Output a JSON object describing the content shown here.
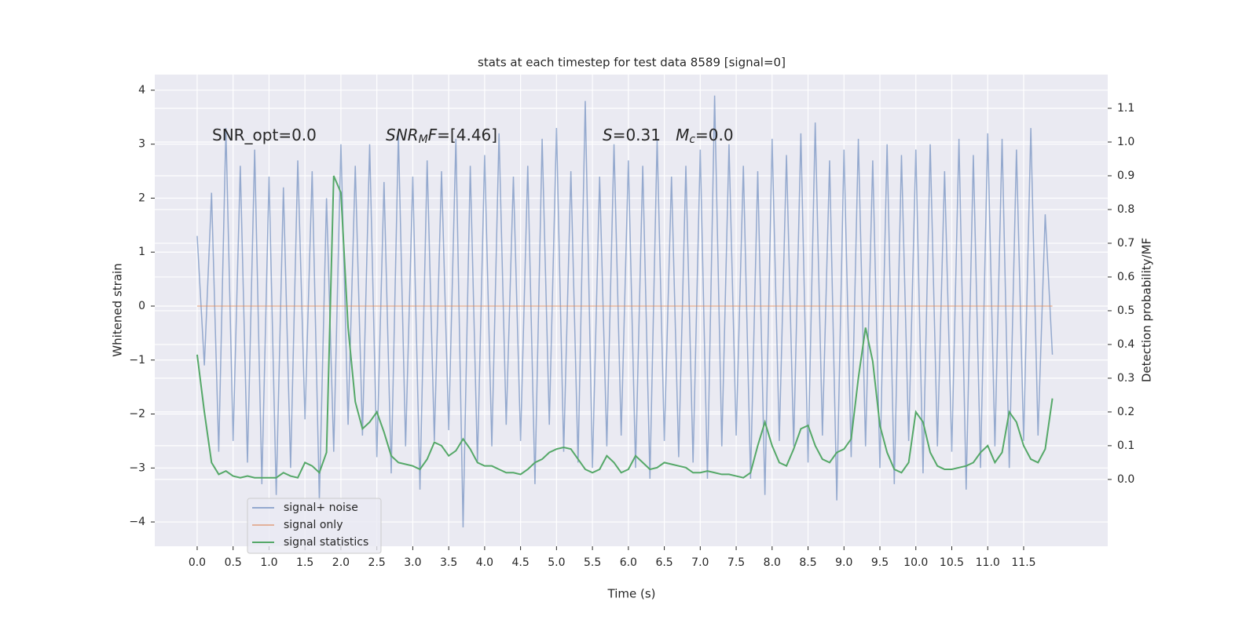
{
  "chart_data": {
    "type": "line",
    "title": "stats at each timestep for test data 8589 [signal=0]",
    "xlabel": "Time (s)",
    "ylabel": "Whitened strain",
    "y2label": "Detection probability/MF",
    "annotations": [
      [
        {
          "text": "SNR_opt=0.0"
        }
      ],
      [
        {
          "text": "SNR",
          "style": "italic"
        },
        {
          "text": "M",
          "style": "sub"
        },
        {
          "text": "F",
          "style": "italic"
        },
        {
          "text": "=[4.46]"
        }
      ],
      [
        {
          "text": "S",
          "style": "italic"
        },
        {
          "text": "=0.31   "
        },
        {
          "text": "M",
          "style": "italic"
        },
        {
          "text": "c",
          "style": "sub"
        },
        {
          "text": "=0.0"
        }
      ]
    ],
    "x": [
      0,
      0.1,
      0.2,
      0.3,
      0.4,
      0.5,
      0.6,
      0.7,
      0.8,
      0.9,
      1,
      1.1,
      1.2,
      1.3,
      1.4,
      1.5,
      1.6,
      1.7,
      1.8,
      1.9,
      2,
      2.1,
      2.2,
      2.3,
      2.4,
      2.5,
      2.6,
      2.7,
      2.8,
      2.9,
      3,
      3.1,
      3.2,
      3.3,
      3.4,
      3.5,
      3.6,
      3.7,
      3.8,
      3.9,
      4,
      4.1,
      4.2,
      4.3,
      4.4,
      4.5,
      4.6,
      4.7,
      4.8,
      4.9,
      5,
      5.1,
      5.2,
      5.3,
      5.4,
      5.5,
      5.6,
      5.7,
      5.8,
      5.9,
      6,
      6.1,
      6.2,
      6.3,
      6.4,
      6.5,
      6.6,
      6.7,
      6.8,
      6.9,
      7,
      7.1,
      7.2,
      7.3,
      7.4,
      7.5,
      7.6,
      7.7,
      7.8,
      7.9,
      8,
      8.1,
      8.2,
      8.3,
      8.4,
      8.5,
      8.6,
      8.7,
      8.8,
      8.9,
      9,
      9.1,
      9.2,
      9.3,
      9.4,
      9.5,
      9.6,
      9.7,
      9.8,
      9.9,
      10,
      10.1,
      10.2,
      10.3,
      10.4,
      10.5,
      10.6,
      10.7,
      10.8,
      10.9,
      11,
      11.1,
      11.2,
      11.3,
      11.4,
      11.5,
      11.6,
      11.7,
      11.8,
      11.9
    ],
    "series": [
      {
        "name": "signal+ noise",
        "color": "#4c72b0",
        "values": [
          1.3,
          -1.1,
          2.1,
          -2.7,
          3.3,
          -2.5,
          2.6,
          -2.9,
          2.9,
          -3.3,
          2.4,
          -3.5,
          2.2,
          -3.0,
          2.7,
          -2.1,
          2.5,
          -3.6,
          2.0,
          -2.7,
          3.0,
          -2.2,
          2.6,
          -2.4,
          3.0,
          -2.8,
          2.3,
          -3.1,
          3.2,
          -2.6,
          2.4,
          -3.4,
          2.7,
          -2.5,
          2.5,
          -2.3,
          3.1,
          -4.1,
          2.6,
          -2.9,
          2.8,
          -2.6,
          3.2,
          -2.2,
          2.4,
          -2.5,
          2.6,
          -3.3,
          3.1,
          -2.2,
          3.3,
          -2.7,
          2.5,
          -2.9,
          3.8,
          -3.0,
          2.4,
          -2.6,
          3.0,
          -2.4,
          2.7,
          -3.0,
          2.6,
          -3.2,
          3.1,
          -2.5,
          2.4,
          -2.8,
          2.6,
          -2.9,
          2.9,
          -3.2,
          3.9,
          -2.6,
          3.0,
          -2.4,
          2.6,
          -3.2,
          2.5,
          -3.5,
          3.1,
          -2.5,
          2.8,
          -2.6,
          3.2,
          -2.9,
          3.4,
          -2.4,
          2.7,
          -3.6,
          2.9,
          -2.8,
          3.1,
          -2.6,
          2.7,
          -3.0,
          3.0,
          -3.3,
          2.8,
          -2.5,
          2.9,
          -3.1,
          3.0,
          -2.6,
          2.5,
          -2.7,
          3.1,
          -3.4,
          2.8,
          -3.0,
          3.2,
          -2.6,
          3.1,
          -3.0,
          2.9,
          -2.5,
          3.3,
          -2.4,
          1.7,
          -0.9
        ]
      },
      {
        "name": "signal only",
        "color": "#dd8452",
        "values": [
          0,
          0,
          0,
          0,
          0,
          0,
          0,
          0,
          0,
          0,
          0,
          0,
          0,
          0,
          0,
          0,
          0,
          0,
          0,
          0,
          0,
          0,
          0,
          0,
          0,
          0,
          0,
          0,
          0,
          0,
          0,
          0,
          0,
          0,
          0,
          0,
          0,
          0,
          0,
          0,
          0,
          0,
          0,
          0,
          0,
          0,
          0,
          0,
          0,
          0,
          0,
          0,
          0,
          0,
          0,
          0,
          0,
          0,
          0,
          0,
          0,
          0,
          0,
          0,
          0,
          0,
          0,
          0,
          0,
          0,
          0,
          0,
          0,
          0,
          0,
          0,
          0,
          0,
          0,
          0,
          0,
          0,
          0,
          0,
          0,
          0,
          0,
          0,
          0,
          0,
          0,
          0,
          0,
          0,
          0,
          0,
          0,
          0,
          0,
          0,
          0,
          0,
          0,
          0,
          0,
          0,
          0,
          0,
          0,
          0,
          0,
          0,
          0,
          0,
          0,
          0,
          0,
          0,
          0,
          0
        ]
      },
      {
        "name": "signal statistics",
        "color": "#55a868",
        "axis": "y2",
        "values": [
          0.37,
          0.2,
          0.05,
          0.015,
          0.025,
          0.01,
          0.005,
          0.01,
          0.005,
          0.005,
          0.005,
          0.005,
          0.02,
          0.01,
          0.005,
          0.05,
          0.04,
          0.02,
          0.08,
          0.9,
          0.85,
          0.45,
          0.23,
          0.15,
          0.17,
          0.2,
          0.14,
          0.07,
          0.05,
          0.045,
          0.04,
          0.03,
          0.06,
          0.11,
          0.1,
          0.07,
          0.085,
          0.12,
          0.09,
          0.05,
          0.04,
          0.04,
          0.03,
          0.02,
          0.02,
          0.015,
          0.03,
          0.05,
          0.06,
          0.08,
          0.09,
          0.095,
          0.09,
          0.06,
          0.03,
          0.02,
          0.03,
          0.07,
          0.05,
          0.02,
          0.03,
          0.07,
          0.05,
          0.03,
          0.035,
          0.05,
          0.045,
          0.04,
          0.035,
          0.02,
          0.02,
          0.025,
          0.02,
          0.015,
          0.015,
          0.01,
          0.005,
          0.02,
          0.1,
          0.17,
          0.1,
          0.05,
          0.04,
          0.09,
          0.15,
          0.16,
          0.1,
          0.06,
          0.05,
          0.08,
          0.09,
          0.12,
          0.3,
          0.45,
          0.35,
          0.16,
          0.08,
          0.03,
          0.02,
          0.05,
          0.2,
          0.17,
          0.08,
          0.04,
          0.03,
          0.03,
          0.035,
          0.04,
          0.05,
          0.08,
          0.1,
          0.05,
          0.08,
          0.2,
          0.17,
          0.1,
          0.06,
          0.05,
          0.09,
          0.24
        ]
      }
    ],
    "xlim": [
      -0.59,
      12.67
    ],
    "ylim": [
      -4.45,
      4.29
    ],
    "y2lim": [
      -0.198,
      1.2
    ],
    "xticks": [
      {
        "value": 0,
        "label": "0.0"
      },
      0.5,
      {
        "value": 1,
        "label": "1.0"
      },
      1.5,
      {
        "value": 2,
        "label": "2.0"
      },
      2.5,
      {
        "value": 3,
        "label": "3.0"
      },
      3.5,
      {
        "value": 4,
        "label": "4.0"
      },
      4.5,
      {
        "value": 5,
        "label": "5.0"
      },
      5.5,
      {
        "value": 6,
        "label": "6.0"
      },
      6.5,
      {
        "value": 7,
        "label": "7.0"
      },
      7.5,
      {
        "value": 8,
        "label": "8.0"
      },
      8.5,
      {
        "value": 9,
        "label": "9.0"
      },
      9.5,
      {
        "value": 10,
        "label": "10.0"
      },
      10.5,
      {
        "value": 11,
        "label": "11.0"
      },
      11.5
    ],
    "yticks": [
      {
        "value": -4,
        "label": "−4"
      },
      {
        "value": -3,
        "label": "−3"
      },
      {
        "value": -2,
        "label": "−2"
      },
      {
        "value": -1,
        "label": "−1"
      },
      0,
      1,
      2,
      3,
      4
    ],
    "y2ticks": [
      {
        "value": 0,
        "label": "0.0"
      },
      0.1,
      0.2,
      0.3,
      0.4,
      0.5,
      0.6,
      0.7,
      0.8,
      0.9,
      {
        "value": 1,
        "label": "1.0"
      },
      1.1
    ],
    "grid": true,
    "legend": "lower left"
  }
}
